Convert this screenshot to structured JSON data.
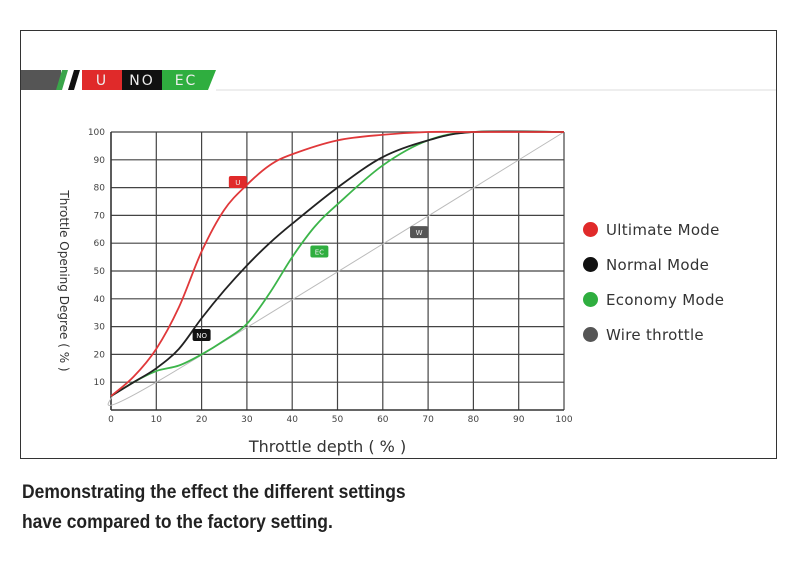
{
  "brand_bar": {
    "segments": [
      "U",
      "NO",
      "EC"
    ],
    "colors": {
      "U": "#e02a2a",
      "NO": "#111111",
      "EC": "#2fae3f"
    }
  },
  "chart_data": {
    "type": "line",
    "title": "",
    "xlabel": "Throttle depth ( % )",
    "ylabel": "Throttle Opening Degree ( % )",
    "xlim": [
      0,
      100
    ],
    "ylim": [
      0,
      100
    ],
    "xticks": [
      0,
      10,
      20,
      30,
      40,
      50,
      60,
      70,
      80,
      90,
      100
    ],
    "yticks": [
      10,
      20,
      30,
      40,
      50,
      60,
      70,
      80,
      90,
      100
    ],
    "grid": true,
    "legend_placement": "right",
    "series": [
      {
        "name": "Ultimate Mode",
        "tag": "U",
        "color": "#e0383a",
        "x": [
          0,
          5,
          10,
          15,
          20,
          25,
          30,
          35,
          40,
          50,
          60,
          70,
          80,
          100
        ],
        "y": [
          5,
          12,
          22,
          37,
          57,
          72,
          81,
          88,
          92,
          97,
          99,
          100,
          100,
          100
        ]
      },
      {
        "name": "Normal Mode",
        "tag": "NO",
        "color": "#222222",
        "x": [
          0,
          5,
          10,
          15,
          20,
          25,
          30,
          35,
          40,
          50,
          60,
          70,
          80,
          100
        ],
        "y": [
          5,
          10,
          15,
          22,
          33,
          43,
          52,
          60,
          67,
          80,
          91,
          97,
          100,
          100
        ]
      },
      {
        "name": "Economy Mode",
        "tag": "EC",
        "color": "#3cb54a",
        "x": [
          0,
          5,
          10,
          15,
          20,
          25,
          30,
          35,
          40,
          45,
          50,
          60,
          70,
          80,
          100
        ],
        "y": [
          5,
          10,
          14,
          16,
          20,
          25,
          31,
          42,
          55,
          66,
          74,
          88,
          97,
          100,
          100
        ]
      },
      {
        "name": "Wire throttle",
        "tag": "W",
        "color": "#bbbbbb",
        "x": [
          0,
          10,
          100
        ],
        "y": [
          5,
          10,
          100
        ]
      }
    ],
    "annotations": [
      {
        "text": "U",
        "x": 28,
        "y": 82,
        "color": "#e02a2a"
      },
      {
        "text": "NO",
        "x": 20,
        "y": 27,
        "color": "#111111"
      },
      {
        "text": "EC",
        "x": 46,
        "y": 57,
        "color": "#2fae3f"
      },
      {
        "text": "W",
        "x": 68,
        "y": 64,
        "color": "#555555"
      }
    ]
  },
  "legend": [
    {
      "label": "Ultimate Mode",
      "color": "#e02a2a"
    },
    {
      "label": "Normal Mode",
      "color": "#111111"
    },
    {
      "label": "Economy Mode",
      "color": "#2fae3f"
    },
    {
      "label": "Wire throttle",
      "color": "#555555"
    }
  ],
  "caption": {
    "line1": "Demonstrating the effect the different settings",
    "line2": "have compared to the factory setting."
  }
}
